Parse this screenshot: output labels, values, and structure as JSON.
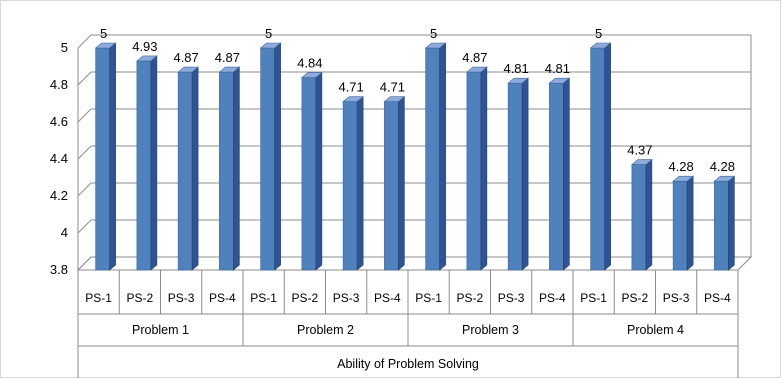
{
  "chart_data": {
    "type": "bar",
    "bar_color": "#4f81bd",
    "bar_side_color": "#2f5496",
    "bar_top_color": "#8eaadb",
    "ylim": [
      3.8,
      5.0
    ],
    "yticks": [
      "3.8",
      "4",
      "4.2",
      "4.4",
      "4.6",
      "4.8",
      "5"
    ],
    "xlabel": "Ability of Problem Solving",
    "groups": [
      {
        "name": "Problem 1",
        "categories": [
          "PS-1",
          "PS-2",
          "PS-3",
          "PS-4"
        ],
        "values": [
          5,
          4.93,
          4.87,
          4.87
        ],
        "labels": [
          "5",
          "4.93",
          "4.87",
          "4.87"
        ]
      },
      {
        "name": "Problem 2",
        "categories": [
          "PS-1",
          "PS-2",
          "PS-3",
          "PS-4"
        ],
        "values": [
          5,
          4.84,
          4.71,
          4.71
        ],
        "labels": [
          "5",
          "4.84",
          "4.71",
          "4.71"
        ]
      },
      {
        "name": "Problem 3",
        "categories": [
          "PS-1",
          "PS-2",
          "PS-3",
          "PS-4"
        ],
        "values": [
          5,
          4.87,
          4.81,
          4.81
        ],
        "labels": [
          "5",
          "4.87",
          "4.81",
          "4.81"
        ]
      },
      {
        "name": "Problem 4",
        "categories": [
          "PS-1",
          "PS-2",
          "PS-3",
          "PS-4"
        ],
        "values": [
          5,
          4.37,
          4.28,
          4.28
        ],
        "labels": [
          "5",
          "4.37",
          "4.28",
          "4.28"
        ]
      }
    ],
    "grid": true
  }
}
